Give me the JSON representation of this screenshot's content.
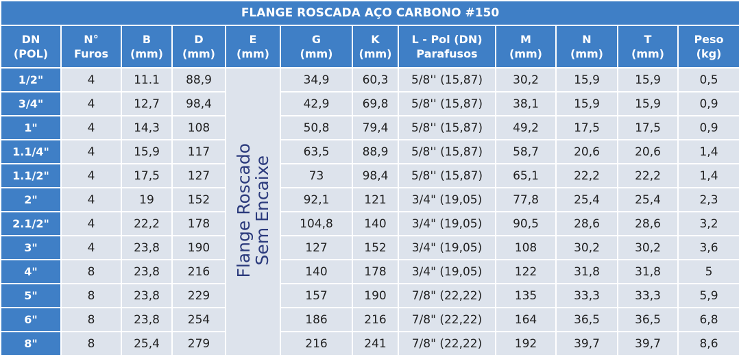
{
  "title": "FLANGE ROSCADA AÇO CARBONO #150",
  "headers": [
    [
      "DN",
      "(POL)"
    ],
    [
      "N°",
      "Furos"
    ],
    [
      "B",
      "(mm)"
    ],
    [
      "D",
      "(mm)"
    ],
    [
      "E",
      "(mm)"
    ],
    [
      "G",
      "(mm)"
    ],
    [
      "K",
      "(mm)"
    ],
    [
      "L - Pol  (DN)",
      "Parafusos"
    ],
    [
      "M",
      "(mm)"
    ],
    [
      "N",
      "(mm)"
    ],
    [
      "T",
      "(mm)"
    ],
    [
      "Peso",
      "(kg)"
    ]
  ],
  "merged_cell": [
    "Flange Roscado",
    "Sem Encaixe"
  ],
  "rows": [
    [
      "1/2\"",
      "4",
      "11.1",
      "88,9",
      "34,9",
      "60,3",
      "5/8'' (15,87)",
      "30,2",
      "15,9",
      "15,9",
      "0,5"
    ],
    [
      "3/4\"",
      "4",
      "12,7",
      "98,4",
      "42,9",
      "69,8",
      "5/8'' (15,87)",
      "38,1",
      "15,9",
      "15,9",
      "0,9"
    ],
    [
      "1\"",
      "4",
      "14,3",
      "108",
      "50,8",
      "79,4",
      "5/8'' (15,87)",
      "49,2",
      "17,5",
      "17,5",
      "0,9"
    ],
    [
      "1.1/4\"",
      "4",
      "15,9",
      "117",
      "63,5",
      "88,9",
      "5/8'' (15,87)",
      "58,7",
      "20,6",
      "20,6",
      "1,4"
    ],
    [
      "1.1/2\"",
      "4",
      "17,5",
      "127",
      "73",
      "98,4",
      "5/8'' (15,87)",
      "65,1",
      "22,2",
      "22,2",
      "1,4"
    ],
    [
      "2\"",
      "4",
      "19",
      "152",
      "92,1",
      "121",
      "3/4\" (19,05)",
      "77,8",
      "25,4",
      "25,4",
      "2,3"
    ],
    [
      "2.1/2\"",
      "4",
      "22,2",
      "178",
      "104,8",
      "140",
      "3/4\" (19,05)",
      "90,5",
      "28,6",
      "28,6",
      "3,2"
    ],
    [
      "3\"",
      "4",
      "23,8",
      "190",
      "127",
      "152",
      "3/4\" (19,05)",
      "108",
      "30,2",
      "30,2",
      "3,6"
    ],
    [
      "4\"",
      "8",
      "23,8",
      "216",
      "140",
      "178",
      "3/4\" (19,05)",
      "122",
      "31,8",
      "31,8",
      "5"
    ],
    [
      "5\"",
      "8",
      "23,8",
      "229",
      "157",
      "190",
      "7/8\" (22,22)",
      "135",
      "33,3",
      "33,3",
      "5,9"
    ],
    [
      "6\"",
      "8",
      "23,8",
      "254",
      "186",
      "216",
      "7/8\" (22,22)",
      "164",
      "36,5",
      "36,5",
      "6,8"
    ],
    [
      "8\"",
      "8",
      "25,4",
      "279",
      "216",
      "241",
      "7/8\" (22,22)",
      "192",
      "39,7",
      "39,7",
      "8,6"
    ]
  ]
}
